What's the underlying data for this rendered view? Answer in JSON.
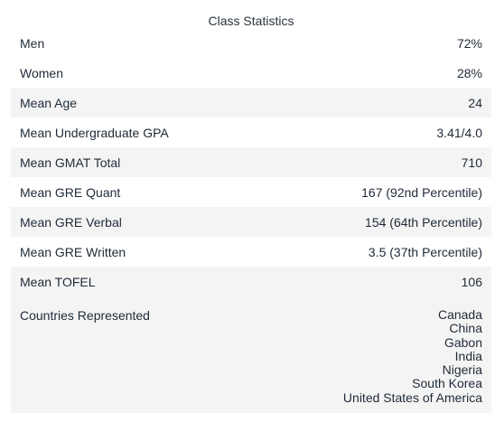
{
  "caption": "Class Statistics",
  "rows": [
    {
      "label": "Men",
      "value": "72%"
    },
    {
      "label": "Women",
      "value": "28%"
    },
    {
      "label": "Mean Age",
      "value": "24"
    },
    {
      "label": "Mean Undergraduate GPA",
      "value": "3.41/4.0"
    },
    {
      "label": "Mean GMAT Total",
      "value": "710"
    },
    {
      "label": "Mean GRE Quant",
      "value": "167 (92nd Percentile)"
    },
    {
      "label": "Mean GRE Verbal",
      "value": "154 (64th Percentile)"
    },
    {
      "label": "Mean GRE Written",
      "value": "3.5 (37th Percentile)"
    },
    {
      "label": "Mean TOFEL",
      "value": "106"
    }
  ],
  "countries": {
    "label": "Countries Represented",
    "values": [
      "Canada",
      "China",
      "Gabon",
      "India",
      "Nigeria",
      "South Korea",
      "United States of America"
    ]
  }
}
